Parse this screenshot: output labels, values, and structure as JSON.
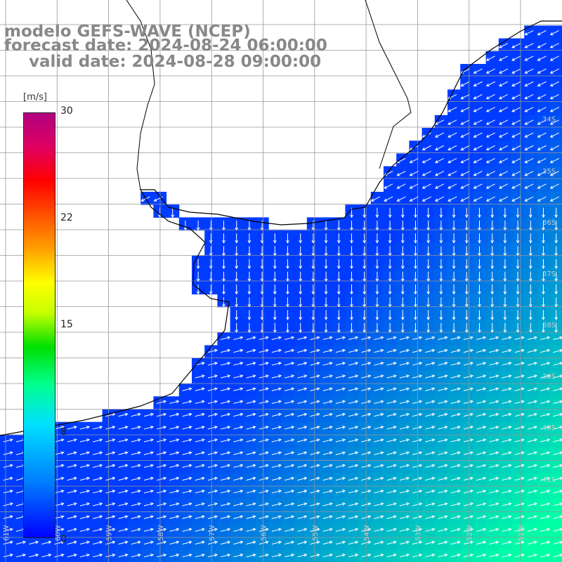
{
  "header": {
    "line1": "modelo GEFS-WAVE (NCEP)",
    "line2": "forecast date: 2024-08-24 06:00:00",
    "line3": "valid date: 2024-08-28 09:00:00"
  },
  "colorbar": {
    "unit": "[m/s]",
    "ticks": [
      {
        "label": "30",
        "value": 30
      },
      {
        "label": "22",
        "value": 22
      },
      {
        "label": "15",
        "value": 15
      },
      {
        "label": "8",
        "value": 8
      },
      {
        "label": "0",
        "value": 0
      }
    ],
    "range": [
      0,
      30
    ]
  },
  "lat_labels": [
    "34S",
    "35S",
    "36S",
    "37S",
    "38S",
    "39S",
    "40S",
    "41S"
  ],
  "lon_labels": [
    "61W",
    "60W",
    "59W",
    "58W",
    "57W",
    "56W",
    "55W",
    "54W",
    "53W",
    "52W",
    "51W"
  ],
  "colors": {
    "land": "#ffffff",
    "coast": "#000000",
    "grid": "#999999",
    "arrow": "#ffffff",
    "title": "#888888"
  }
}
